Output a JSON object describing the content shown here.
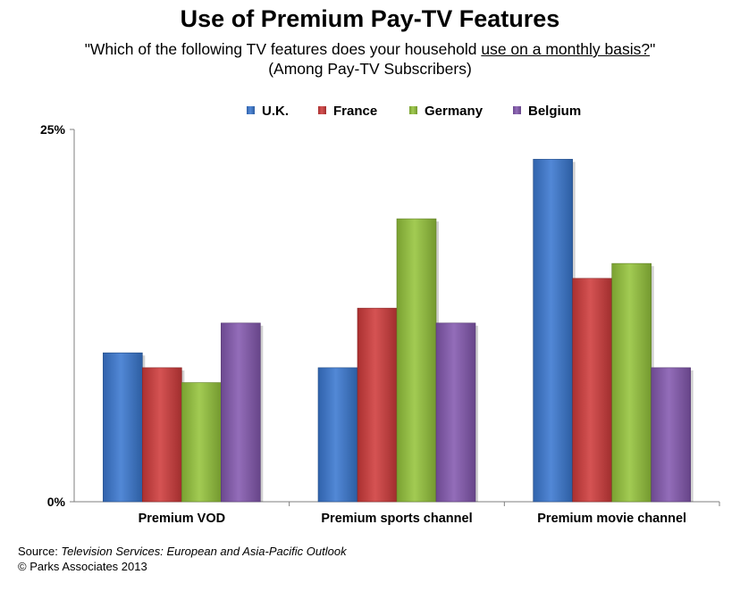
{
  "chart_data": {
    "type": "bar",
    "title": "Use of Premium Pay-TV Features",
    "subtitle_prefix": "\"Which of the following TV features does your household ",
    "subtitle_underlined": "use on a monthly basis?",
    "subtitle_suffix": "\"",
    "subtitle_line2": "(Among Pay-TV Subscribers)",
    "categories": [
      "Premium VOD",
      "Premium sports channel",
      "Premium movie channel"
    ],
    "series": [
      {
        "name": "U.K.",
        "color": "#3a78d0",
        "values": [
          10,
          9,
          23
        ]
      },
      {
        "name": "France",
        "color": "#cf3b3b",
        "values": [
          9,
          13,
          15
        ]
      },
      {
        "name": "Germany",
        "color": "#95c43c",
        "values": [
          8,
          19,
          16
        ]
      },
      {
        "name": "Belgium",
        "color": "#8459b0",
        "values": [
          12,
          12,
          9
        ]
      }
    ],
    "ylim": [
      0,
      25
    ],
    "yticks": [
      "0%",
      "25%"
    ],
    "legend_position": "top",
    "grid": false
  },
  "footer": {
    "source_label": "Source: ",
    "source_title": "Television Services: European and Asia-Pacific Outlook",
    "copyright": "© Parks Associates 2013"
  }
}
